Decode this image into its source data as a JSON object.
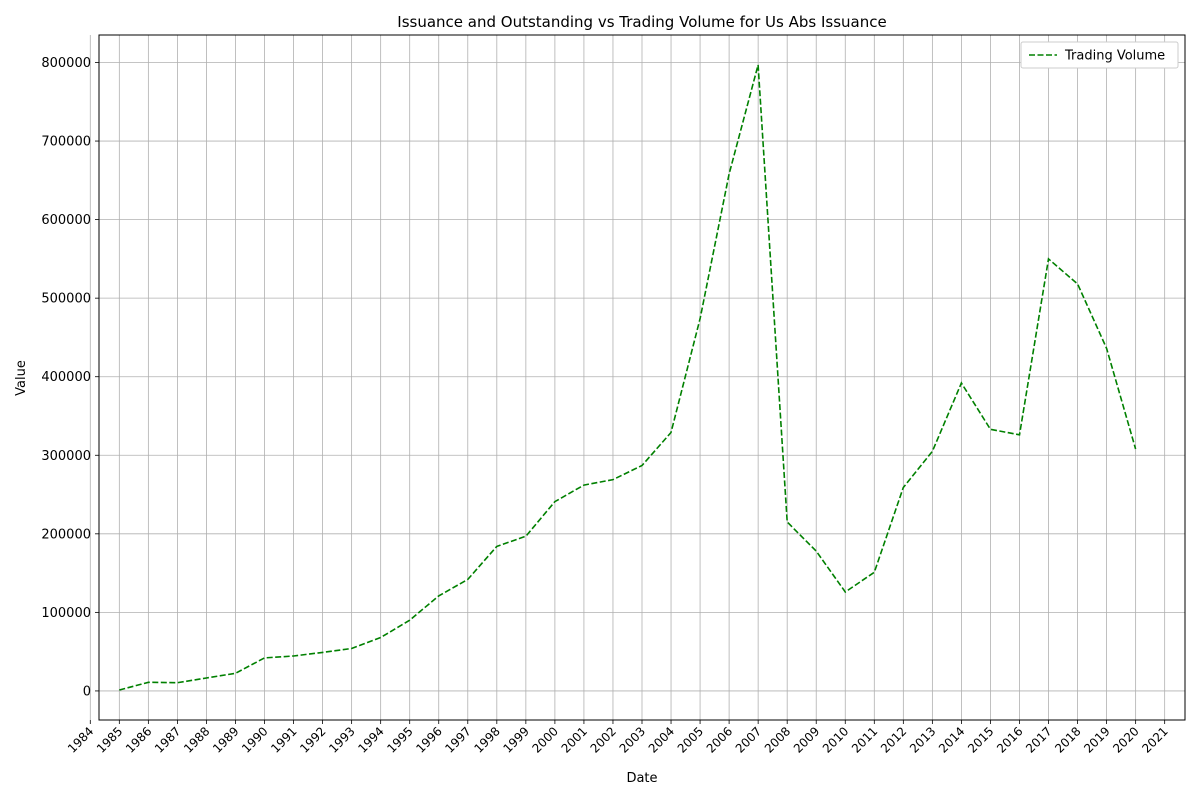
{
  "chart_data": {
    "type": "line",
    "title": "Issuance and Outstanding vs Trading Volume for Us Abs Issuance",
    "xlabel": "Date",
    "ylabel": "Value",
    "xlim": [
      1984.3,
      2021.7
    ],
    "ylim": [
      -37000,
      835000
    ],
    "x_ticks": [
      1984,
      1985,
      1986,
      1987,
      1988,
      1989,
      1990,
      1991,
      1992,
      1993,
      1994,
      1995,
      1996,
      1997,
      1998,
      1999,
      2000,
      2001,
      2002,
      2003,
      2004,
      2005,
      2006,
      2007,
      2008,
      2009,
      2010,
      2011,
      2012,
      2013,
      2014,
      2015,
      2016,
      2017,
      2018,
      2019,
      2020,
      2021
    ],
    "y_ticks": [
      0,
      100000,
      200000,
      300000,
      400000,
      500000,
      600000,
      700000,
      800000
    ],
    "grid": true,
    "legend_position": "top-right",
    "series": [
      {
        "name": "Trading Volume",
        "color": "#008000",
        "line_style": "dashed",
        "x": [
          1985,
          1986,
          1987,
          1988,
          1989,
          1990,
          1991,
          1992,
          1993,
          1994,
          1995,
          1996,
          1997,
          1998,
          1999,
          2000,
          2001,
          2002,
          2003,
          2004,
          2005,
          2006,
          2007,
          2008,
          2009,
          2010,
          2011,
          2012,
          2013,
          2014,
          2015,
          2016,
          2017,
          2018,
          2019,
          2020
        ],
        "values": [
          1200,
          11000,
          10500,
          16500,
          22500,
          42000,
          44500,
          49000,
          54000,
          68000,
          90000,
          121000,
          142000,
          184000,
          197000,
          241000,
          262000,
          269000,
          287000,
          329000,
          474000,
          658000,
          797000,
          215000,
          178000,
          126000,
          151000,
          259000,
          305000,
          392000,
          333000,
          326000,
          550000,
          518000,
          436000,
          308000
        ]
      }
    ]
  }
}
